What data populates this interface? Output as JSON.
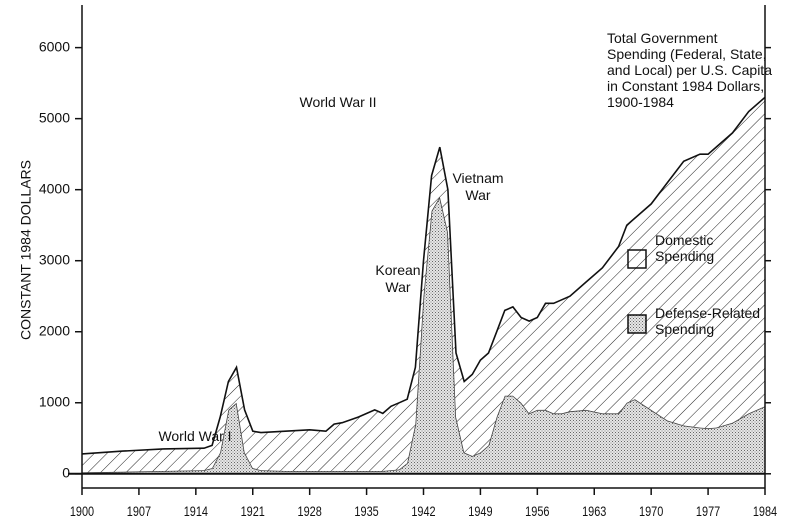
{
  "chart_data": {
    "type": "stacked-area",
    "title": "Total Government Spending (Federal, State, and Local) per U.S. Capita in Constant 1984 Dollars, 1900-1984",
    "y_label": "CONSTANT 1984 DOLLARS",
    "x": [
      1900,
      1905,
      1910,
      1915,
      1916,
      1917,
      1918,
      1919,
      1920,
      1921,
      1922,
      1925,
      1928,
      1930,
      1931,
      1932,
      1934,
      1936,
      1937,
      1938,
      1939,
      1940,
      1941,
      1942,
      1943,
      1944,
      1945,
      1946,
      1947,
      1948,
      1949,
      1950,
      1951,
      1952,
      1953,
      1954,
      1955,
      1956,
      1957,
      1958,
      1959,
      1960,
      1962,
      1964,
      1966,
      1967,
      1968,
      1970,
      1972,
      1974,
      1976,
      1977,
      1978,
      1980,
      1982,
      1984
    ],
    "series": [
      {
        "name": "Defense-Related Spending",
        "color": "#444444",
        "values": [
          20,
          30,
          40,
          50,
          80,
          300,
          900,
          1000,
          300,
          80,
          50,
          40,
          40,
          40,
          40,
          40,
          40,
          40,
          40,
          50,
          60,
          150,
          700,
          2500,
          3700,
          3900,
          3400,
          800,
          300,
          250,
          300,
          400,
          800,
          1100,
          1100,
          1000,
          850,
          900,
          900,
          850,
          850,
          880,
          900,
          850,
          850,
          1000,
          1050,
          900,
          750,
          680,
          650,
          640,
          650,
          720,
          850,
          950
        ]
      },
      {
        "name": "Domestic Spending",
        "color": "#111111",
        "values": [
          260,
          290,
          310,
          310,
          320,
          500,
          400,
          500,
          600,
          520,
          530,
          560,
          580,
          560,
          660,
          680,
          760,
          860,
          810,
          900,
          940,
          900,
          800,
          500,
          500,
          700,
          600,
          900,
          1000,
          1150,
          1300,
          1300,
          1200,
          1200,
          1250,
          1200,
          1300,
          1300,
          1500,
          1550,
          1600,
          1620,
          1800,
          2050,
          2350,
          2500,
          2550,
          2900,
          3350,
          3720,
          3850,
          3860,
          3950,
          4080,
          4250,
          4350
        ]
      }
    ],
    "annotations": [
      "World War I",
      "World War II",
      "Korean War",
      "Vietnam War"
    ],
    "xlim": [
      1900,
      1984
    ],
    "xticks": [
      1900,
      1907,
      1914,
      1921,
      1928,
      1935,
      1942,
      1949,
      1956,
      1963,
      1970,
      1977,
      1984
    ],
    "ylim": [
      -200,
      6600
    ],
    "yticks": [
      0,
      1000,
      2000,
      3000,
      4000,
      5000,
      6000
    ]
  }
}
